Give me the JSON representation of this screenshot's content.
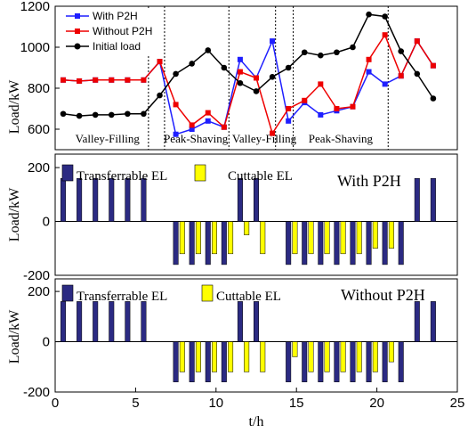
{
  "chart_data": [
    {
      "type": "line",
      "ylabel": "Load/kW",
      "xlim": [
        0,
        25
      ],
      "ylim": [
        500,
        1200
      ],
      "yticks": [
        600,
        800,
        1000,
        1200
      ],
      "x": [
        0.5,
        1.5,
        2.5,
        3.5,
        4.5,
        5.5,
        6.5,
        7.5,
        8.5,
        9.5,
        10.5,
        11.5,
        12.5,
        13.5,
        14.5,
        15.5,
        16.5,
        17.5,
        18.5,
        19.5,
        20.5,
        21.5,
        22.5,
        23.5
      ],
      "series": [
        {
          "name": "With P2H",
          "color": "#1f1fff",
          "marker": "square",
          "values": [
            840,
            835,
            840,
            840,
            840,
            840,
            930,
            575,
            600,
            640,
            610,
            940,
            850,
            1030,
            640,
            730,
            670,
            690,
            710,
            880,
            820,
            860,
            1030,
            910
          ]
        },
        {
          "name": "Without P2H",
          "color": "#ee0000",
          "marker": "square",
          "values": [
            840,
            835,
            840,
            840,
            840,
            840,
            930,
            720,
            620,
            680,
            610,
            880,
            850,
            580,
            700,
            740,
            820,
            700,
            710,
            940,
            1060,
            860,
            1030,
            910
          ]
        },
        {
          "name": "Initial load",
          "color": "#000000",
          "marker": "circle",
          "values": [
            675,
            665,
            670,
            670,
            675,
            675,
            765,
            870,
            920,
            985,
            900,
            825,
            785,
            855,
            900,
            975,
            960,
            975,
            1000,
            1160,
            1150,
            980,
            870,
            750
          ]
        }
      ],
      "legend_position": "top-left",
      "regions": [
        {
          "label": "Valley-Filling",
          "x_from": 0,
          "x_to": 6.5
        },
        {
          "label": "Peak-Shaving",
          "x_from": 6.5,
          "x_to": 11
        },
        {
          "label": "Valley-Filling",
          "x_from": 11,
          "x_to": 15
        },
        {
          "label": "Peak-Shaving",
          "x_from": 15,
          "x_to": 20.5
        }
      ],
      "divider_x": [
        5.8,
        6.8,
        10.8,
        13.7,
        14.8,
        20.7
      ]
    },
    {
      "type": "bar",
      "title": "With P2H",
      "ylabel": "Load/kW",
      "xlim": [
        0,
        25
      ],
      "ylim": [
        -200,
        250
      ],
      "yticks": [
        -200,
        0,
        200
      ],
      "legend_position": "top-left",
      "series": [
        {
          "name": "Transferrable EL",
          "color": "#2b2a82",
          "x": [
            0.5,
            1.5,
            2.5,
            3.5,
            4.5,
            5.5,
            7.5,
            8.5,
            9.5,
            10.5,
            11.5,
            12.5,
            14.5,
            15.5,
            16.5,
            17.5,
            18.5,
            19.5,
            20.5,
            21.5,
            22.5,
            23.5
          ],
          "values": [
            160,
            160,
            160,
            160,
            160,
            160,
            -160,
            -160,
            -160,
            -160,
            160,
            160,
            -160,
            -160,
            -160,
            -160,
            -160,
            -160,
            -160,
            -160,
            160,
            160
          ]
        },
        {
          "name": "Cuttable EL",
          "color": "#ffff00",
          "x": [
            7.9,
            8.9,
            9.9,
            10.9,
            11.9,
            12.9,
            14.9,
            15.9,
            16.9,
            17.9,
            18.9,
            19.9,
            20.9
          ],
          "values": [
            -120,
            -120,
            -120,
            -120,
            -50,
            -120,
            -120,
            -120,
            -120,
            -120,
            -120,
            -100,
            -100
          ]
        }
      ]
    },
    {
      "type": "bar",
      "title": "Without P2H",
      "xlabel": "t/h",
      "ylabel": "Load/kW",
      "xlim": [
        0,
        25
      ],
      "ylim": [
        -200,
        250
      ],
      "yticks": [
        -200,
        0,
        200
      ],
      "xticks": [
        0,
        5,
        10,
        15,
        20,
        25
      ],
      "legend_position": "top-left",
      "series": [
        {
          "name": "Transferrable EL",
          "color": "#2b2a82",
          "x": [
            0.5,
            1.5,
            2.5,
            3.5,
            4.5,
            5.5,
            7.5,
            8.5,
            9.5,
            10.5,
            11.5,
            12.5,
            14.5,
            15.5,
            16.5,
            17.5,
            18.5,
            19.5,
            20.5,
            21.5,
            22.5,
            23.5
          ],
          "values": [
            160,
            160,
            160,
            160,
            160,
            160,
            -160,
            -160,
            -160,
            -160,
            160,
            160,
            -160,
            -160,
            -160,
            -160,
            -160,
            -160,
            -160,
            -160,
            160,
            160
          ]
        },
        {
          "name": "Cuttable EL",
          "color": "#ffff00",
          "x": [
            7.9,
            8.9,
            9.9,
            10.9,
            11.9,
            12.9,
            14.9,
            15.9,
            16.9,
            17.9,
            18.9,
            19.9,
            20.9
          ],
          "values": [
            -120,
            -120,
            -120,
            -120,
            -120,
            -120,
            -60,
            -120,
            -120,
            -120,
            -120,
            -120,
            -80
          ]
        }
      ]
    }
  ]
}
